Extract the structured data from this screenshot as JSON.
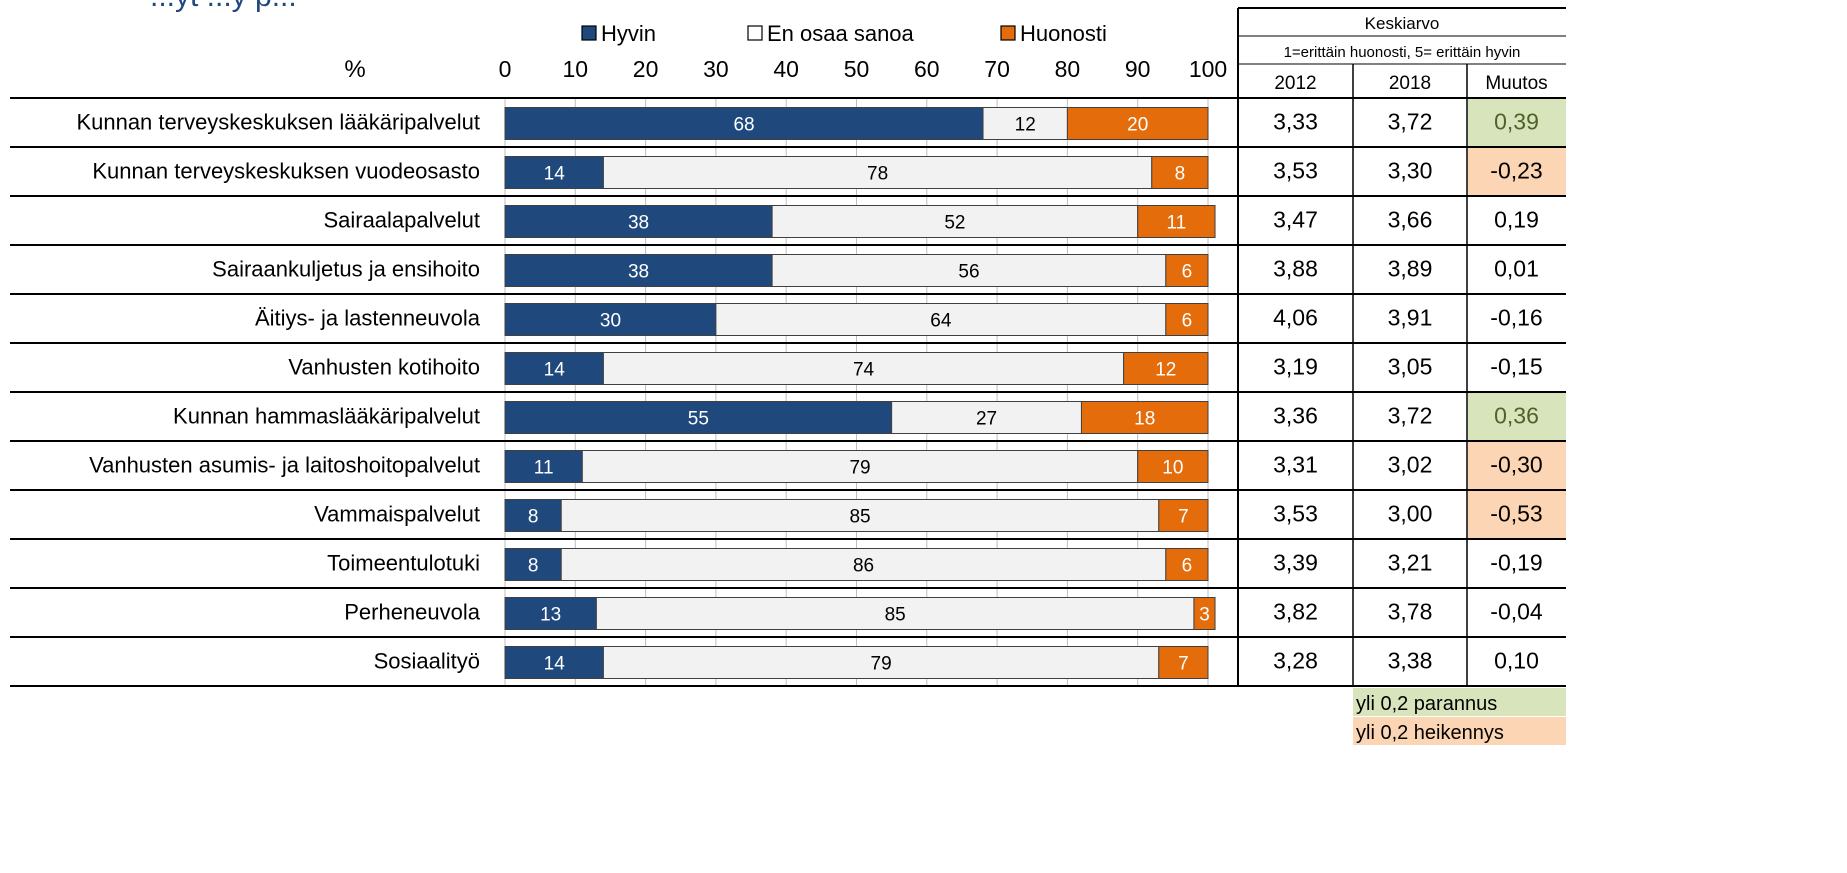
{
  "title_fragment": "...yt ...y p...",
  "colors": {
    "hyvin": "#1F497D",
    "en_osaa": "#F2F2F2",
    "huonosti": "#E46C0A",
    "improve": "#D8E4BC",
    "worsen": "#FCD5B4",
    "improve_text": "#4F6228",
    "title": "#1F497D"
  },
  "chart_data": {
    "type": "bar",
    "stacked": true,
    "orientation": "horizontal",
    "percent_label": "%",
    "xlim": [
      0,
      100
    ],
    "xticks": [
      0,
      10,
      20,
      30,
      40,
      50,
      60,
      70,
      80,
      90,
      100
    ],
    "legend_position": "top",
    "categories": [
      "Kunnan terveyskeskuksen lääkäripalvelut",
      "Kunnan terveyskeskuksen vuodeosasto",
      "Sairaalapalvelut",
      "Sairaankuljetus ja ensihoito",
      "Äitiys- ja lastenneuvola",
      "Vanhusten kotihoito",
      "Kunnan hammaslääkäripalvelut",
      "Vanhusten asumis- ja laitoshoitopalvelut",
      "Vammaispalvelut",
      "Toimeentulotuki",
      "Perheneuvola",
      "Sosiaalityö"
    ],
    "series": [
      {
        "name": "Hyvin",
        "values": [
          68,
          14,
          38,
          38,
          30,
          14,
          55,
          11,
          8,
          8,
          13,
          14
        ]
      },
      {
        "name": "En osaa sanoa",
        "values": [
          12,
          78,
          52,
          56,
          64,
          74,
          27,
          79,
          85,
          86,
          85,
          79
        ]
      },
      {
        "name": "Huonosti",
        "values": [
          20,
          8,
          11,
          6,
          6,
          12,
          18,
          10,
          7,
          6,
          3,
          7
        ]
      }
    ]
  },
  "table": {
    "header": "Keskiarvo",
    "subheader": "1=erittäin huonosti, 5= erittäin hyvin",
    "columns": [
      "2012",
      "2018",
      "Muutos"
    ],
    "rows": [
      {
        "y2012": "3,33",
        "y2018": "3,72",
        "muutos": "0,39",
        "flag": "improve"
      },
      {
        "y2012": "3,53",
        "y2018": "3,30",
        "muutos": "-0,23",
        "flag": "worsen"
      },
      {
        "y2012": "3,47",
        "y2018": "3,66",
        "muutos": "0,19",
        "flag": ""
      },
      {
        "y2012": "3,88",
        "y2018": "3,89",
        "muutos": "0,01",
        "flag": ""
      },
      {
        "y2012": "4,06",
        "y2018": "3,91",
        "muutos": "-0,16",
        "flag": ""
      },
      {
        "y2012": "3,19",
        "y2018": "3,05",
        "muutos": "-0,15",
        "flag": ""
      },
      {
        "y2012": "3,36",
        "y2018": "3,72",
        "muutos": "0,36",
        "flag": "improve"
      },
      {
        "y2012": "3,31",
        "y2018": "3,02",
        "muutos": "-0,30",
        "flag": "worsen"
      },
      {
        "y2012": "3,53",
        "y2018": "3,00",
        "muutos": "-0,53",
        "flag": "worsen"
      },
      {
        "y2012": "3,39",
        "y2018": "3,21",
        "muutos": "-0,19",
        "flag": ""
      },
      {
        "y2012": "3,82",
        "y2018": "3,78",
        "muutos": "-0,04",
        "flag": ""
      },
      {
        "y2012": "3,28",
        "y2018": "3,38",
        "muutos": "0,10",
        "flag": ""
      }
    ],
    "legend": {
      "improve": "yli 0,2 parannus",
      "worsen": "yli 0,2 heikennys"
    }
  }
}
